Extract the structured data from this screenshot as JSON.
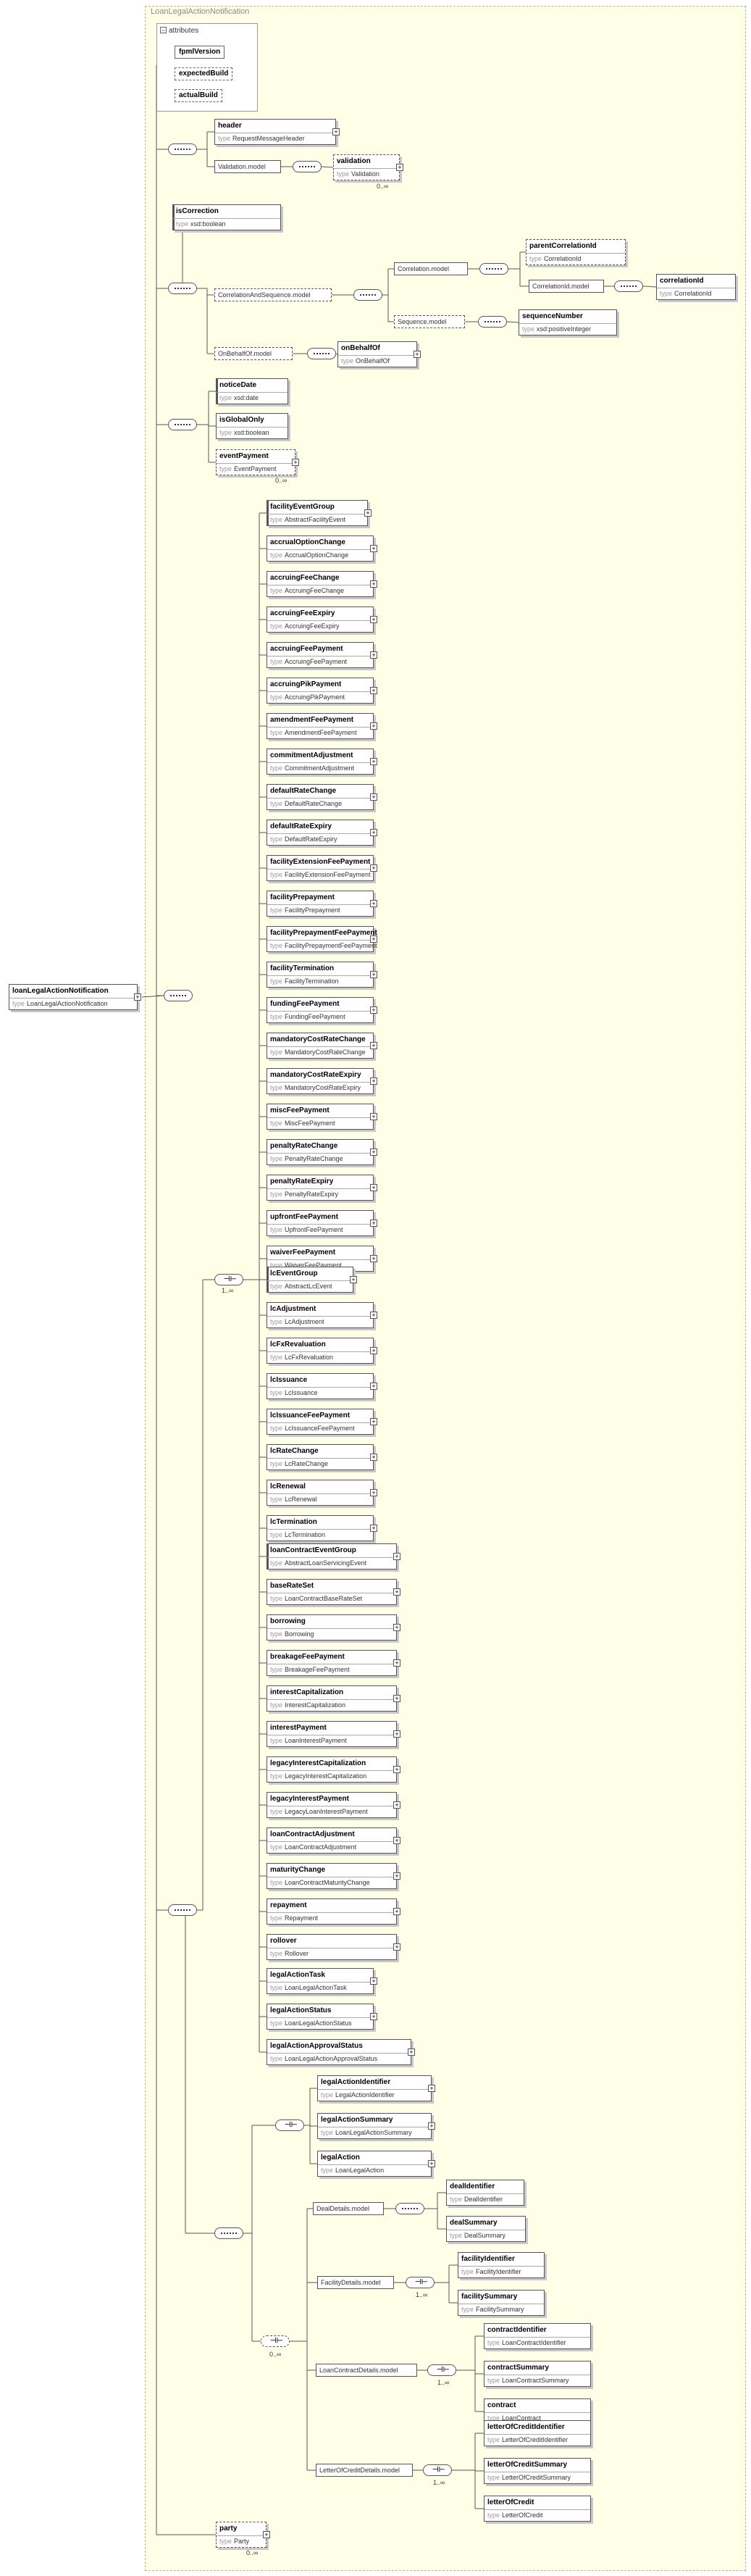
{
  "title": "LoanLegalActionNotification",
  "type_keyword": "type",
  "cardinality_many": "1..∞",
  "cardinality_zero_many": "0..∞",
  "root": {
    "name": "loanLegalActionNotification",
    "type": "LoanLegalActionNotification"
  },
  "attributes": {
    "label": "attributes",
    "items": [
      "fpmlVersion",
      "expectedBuild",
      "actualBuild"
    ]
  },
  "header_group": {
    "header": {
      "name": "header",
      "type": "RequestMessageHeader"
    },
    "validation_model": "Validation.model",
    "validation": {
      "name": "validation",
      "type": "Validation"
    }
  },
  "correction_group": {
    "isCorrection": {
      "name": "isCorrection",
      "type": "xsd:boolean"
    },
    "correlation_and_sequence_model": "CorrelationAndSequence.model",
    "correlation_model": "Correlation.model",
    "parentCorrelationId": {
      "name": "parentCorrelationId",
      "type": "CorrelationId"
    },
    "correlation_id_model": "CorrelationId.model",
    "correlationId": {
      "name": "correlationId",
      "type": "CorrelationId"
    },
    "sequence_model": "Sequence.model",
    "sequenceNumber": {
      "name": "sequenceNumber",
      "type": "xsd:positiveInteger"
    },
    "on_behalf_of_model": "OnBehalfOf.model",
    "onBehalfOf": {
      "name": "onBehalfOf",
      "type": "OnBehalfOf"
    }
  },
  "notice_group": {
    "noticeDate": {
      "name": "noticeDate",
      "type": "xsd:date"
    },
    "isGlobalOnly": {
      "name": "isGlobalOnly",
      "type": "xsd:boolean"
    },
    "eventPayment": {
      "name": "eventPayment",
      "type": "EventPayment"
    }
  },
  "facility_events": [
    {
      "name": "facilityEventGroup",
      "type": "AbstractFacilityEvent"
    },
    {
      "name": "accrualOptionChange",
      "type": "AccrualOptionChange"
    },
    {
      "name": "accruingFeeChange",
      "type": "AccruingFeeChange"
    },
    {
      "name": "accruingFeeExpiry",
      "type": "AccruingFeeExpiry"
    },
    {
      "name": "accruingFeePayment",
      "type": "AccruingFeePayment"
    },
    {
      "name": "accruingPikPayment",
      "type": "AccruingPikPayment"
    },
    {
      "name": "amendmentFeePayment",
      "type": "AmendmentFeePayment"
    },
    {
      "name": "commitmentAdjustment",
      "type": "CommitmentAdjustment"
    },
    {
      "name": "defaultRateChange",
      "type": "DefaultRateChange"
    },
    {
      "name": "defaultRateExpiry",
      "type": "DefaultRateExpiry"
    },
    {
      "name": "facilityExtensionFeePayment",
      "type": "FacilityExtensionFeePayment"
    },
    {
      "name": "facilityPrepayment",
      "type": "FacilityPrepayment"
    },
    {
      "name": "facilityPrepaymentFeePayment",
      "type": "FacilityPrepaymentFeePayment"
    },
    {
      "name": "facilityTermination",
      "type": "FacilityTermination"
    },
    {
      "name": "fundingFeePayment",
      "type": "FundingFeePayment"
    },
    {
      "name": "mandatoryCostRateChange",
      "type": "MandatoryCostRateChange"
    },
    {
      "name": "mandatoryCostRateExpiry",
      "type": "MandatoryCostRateExpiry"
    },
    {
      "name": "miscFeePayment",
      "type": "MiscFeePayment"
    },
    {
      "name": "penaltyRateChange",
      "type": "PenaltyRateChange"
    },
    {
      "name": "penaltyRateExpiry",
      "type": "PenaltyRateExpiry"
    },
    {
      "name": "upfrontFeePayment",
      "type": "UpfrontFeePayment"
    },
    {
      "name": "waiverFeePayment",
      "type": "WaiverFeePayment"
    }
  ],
  "lc_events": [
    {
      "name": "lcEventGroup",
      "type": "AbstractLcEvent"
    },
    {
      "name": "lcAdjustment",
      "type": "LcAdjustment"
    },
    {
      "name": "lcFxRevaluation",
      "type": "LcFxRevaluation"
    },
    {
      "name": "lcIssuance",
      "type": "LcIssuance"
    },
    {
      "name": "lcIssuanceFeePayment",
      "type": "LcIssuanceFeePayment"
    },
    {
      "name": "lcRateChange",
      "type": "LcRateChange"
    },
    {
      "name": "lcRenewal",
      "type": "LcRenewal"
    },
    {
      "name": "lcTermination",
      "type": "LcTermination"
    }
  ],
  "contract_events": [
    {
      "name": "loanContractEventGroup",
      "type": "AbstractLoanServicingEvent"
    },
    {
      "name": "baseRateSet",
      "type": "LoanContractBaseRateSet"
    },
    {
      "name": "borrowing",
      "type": "Borrowing"
    },
    {
      "name": "breakageFeePayment",
      "type": "BreakageFeePayment"
    },
    {
      "name": "interestCapitalization",
      "type": "InterestCapitalization"
    },
    {
      "name": "interestPayment",
      "type": "LoanInterestPayment"
    },
    {
      "name": "legacyInterestCapitalization",
      "type": "LegacyInterestCapitalization"
    },
    {
      "name": "legacyInterestPayment",
      "type": "LegacyLoanInterestPayment"
    },
    {
      "name": "loanContractAdjustment",
      "type": "LoanContractAdjustment"
    },
    {
      "name": "maturityChange",
      "type": "LoanContractMaturityChange"
    },
    {
      "name": "repayment",
      "type": "Repayment"
    },
    {
      "name": "rollover",
      "type": "Rollover"
    }
  ],
  "legal_action": [
    {
      "name": "legalActionTask",
      "type": "LoanLegalActionTask"
    },
    {
      "name": "legalActionStatus",
      "type": "LoanLegalActionStatus"
    },
    {
      "name": "legalActionApprovalStatus",
      "type": "LoanLegalActionApprovalStatus"
    }
  ],
  "legal_action_choice": [
    {
      "name": "legalActionIdentifier",
      "type": "LegalActionIdentifier"
    },
    {
      "name": "legalActionSummary",
      "type": "LoanLegalActionSummary"
    },
    {
      "name": "legalAction",
      "type": "LoanLegalAction"
    }
  ],
  "deal_details": {
    "model": "DealDetails.model",
    "items": [
      {
        "name": "dealIdentifier",
        "type": "DealIdentifier"
      },
      {
        "name": "dealSummary",
        "type": "DealSummary"
      }
    ]
  },
  "facility_details": {
    "model": "FacilityDetails.model",
    "items": [
      {
        "name": "facilityIdentifier",
        "type": "FacilityIdentifier"
      },
      {
        "name": "facilitySummary",
        "type": "FacilitySummary"
      }
    ]
  },
  "loan_contract_details": {
    "model": "LoanContractDetails.model",
    "items": [
      {
        "name": "contractIdentifier",
        "type": "LoanContractIdentifier"
      },
      {
        "name": "contractSummary",
        "type": "LoanContractSummary"
      },
      {
        "name": "contract",
        "type": "LoanContract"
      }
    ]
  },
  "letter_of_credit_details": {
    "model": "LetterOfCreditDetails.model",
    "items": [
      {
        "name": "letterOfCreditIdentifier",
        "type": "LetterOfCreditIdentifier"
      },
      {
        "name": "letterOfCreditSummary",
        "type": "LetterOfCreditSummary"
      },
      {
        "name": "letterOfCredit",
        "type": "LetterOfCredit"
      }
    ]
  },
  "party": {
    "name": "party",
    "type": "Party"
  },
  "colors": {
    "frame_bg": "#ffffe8",
    "frame_border": "#b6b694",
    "box_border": "#555555",
    "wire": "#555555"
  }
}
